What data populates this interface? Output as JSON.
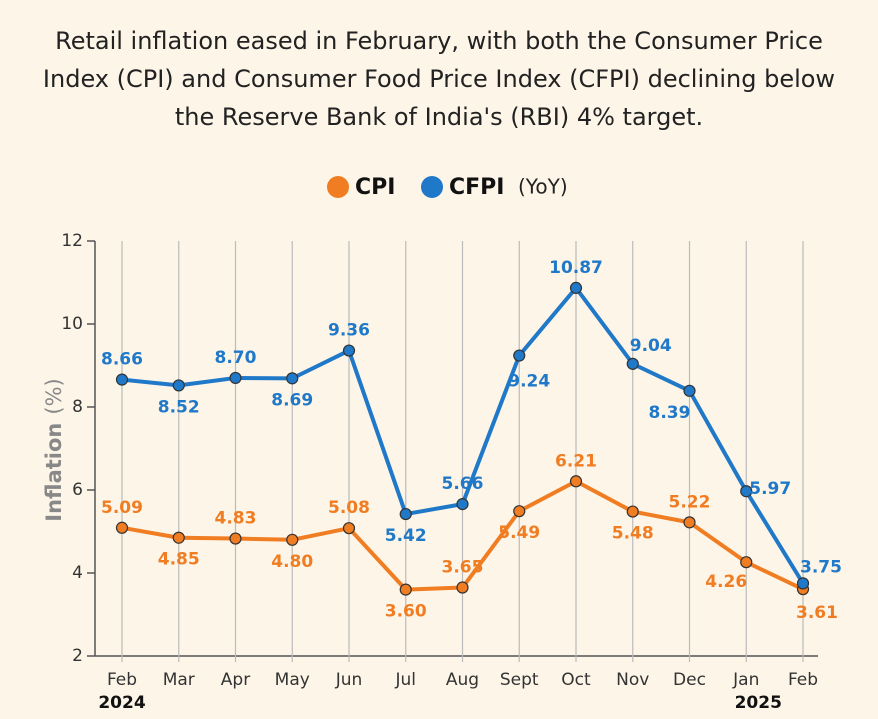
{
  "chart_data": {
    "type": "line",
    "title": "Retail inflation eased in February, with both the Consumer Price Index (CPI) and Consumer Food Price Index (CFPI) declining below the Reserve Bank of India's (RBI) 4% target.",
    "legend_note": "(YoY)",
    "y_label": "Inflation",
    "y_unit": "(%)",
    "categories": [
      "Feb",
      "Mar",
      "Apr",
      "May",
      "Jun",
      "Jul",
      "Aug",
      "Sept",
      "Oct",
      "Nov",
      "Dec",
      "Jan",
      "Feb"
    ],
    "category_years": [
      "2024",
      null,
      null,
      null,
      null,
      null,
      null,
      null,
      null,
      null,
      null,
      "2025",
      null
    ],
    "ylim": [
      2,
      12
    ],
    "yticks": [
      2,
      4,
      6,
      8,
      10,
      12
    ],
    "series": [
      {
        "name": "CPI",
        "color": "#f07d22",
        "values": [
          5.09,
          4.85,
          4.83,
          4.8,
          5.08,
          3.6,
          3.65,
          5.49,
          6.21,
          5.48,
          5.22,
          4.26,
          3.61
        ],
        "value_labels": [
          "5.09",
          "4.85",
          "4.83",
          "4.80",
          "5.08",
          "3.60",
          "3.65",
          "5.49",
          "6.21",
          "5.48",
          "5.22",
          "4.26",
          "3.61"
        ]
      },
      {
        "name": "CFPI",
        "color": "#1f78c8",
        "values": [
          8.66,
          8.52,
          8.7,
          8.69,
          9.36,
          5.42,
          5.66,
          9.24,
          10.87,
          9.04,
          8.39,
          5.97,
          3.75
        ],
        "value_labels": [
          "8.66",
          "8.52",
          "8.70",
          "8.69",
          "9.36",
          "5.42",
          "5.66",
          "9.24",
          "10.87",
          "9.04",
          "8.39",
          "5.97",
          "3.75"
        ]
      }
    ]
  }
}
